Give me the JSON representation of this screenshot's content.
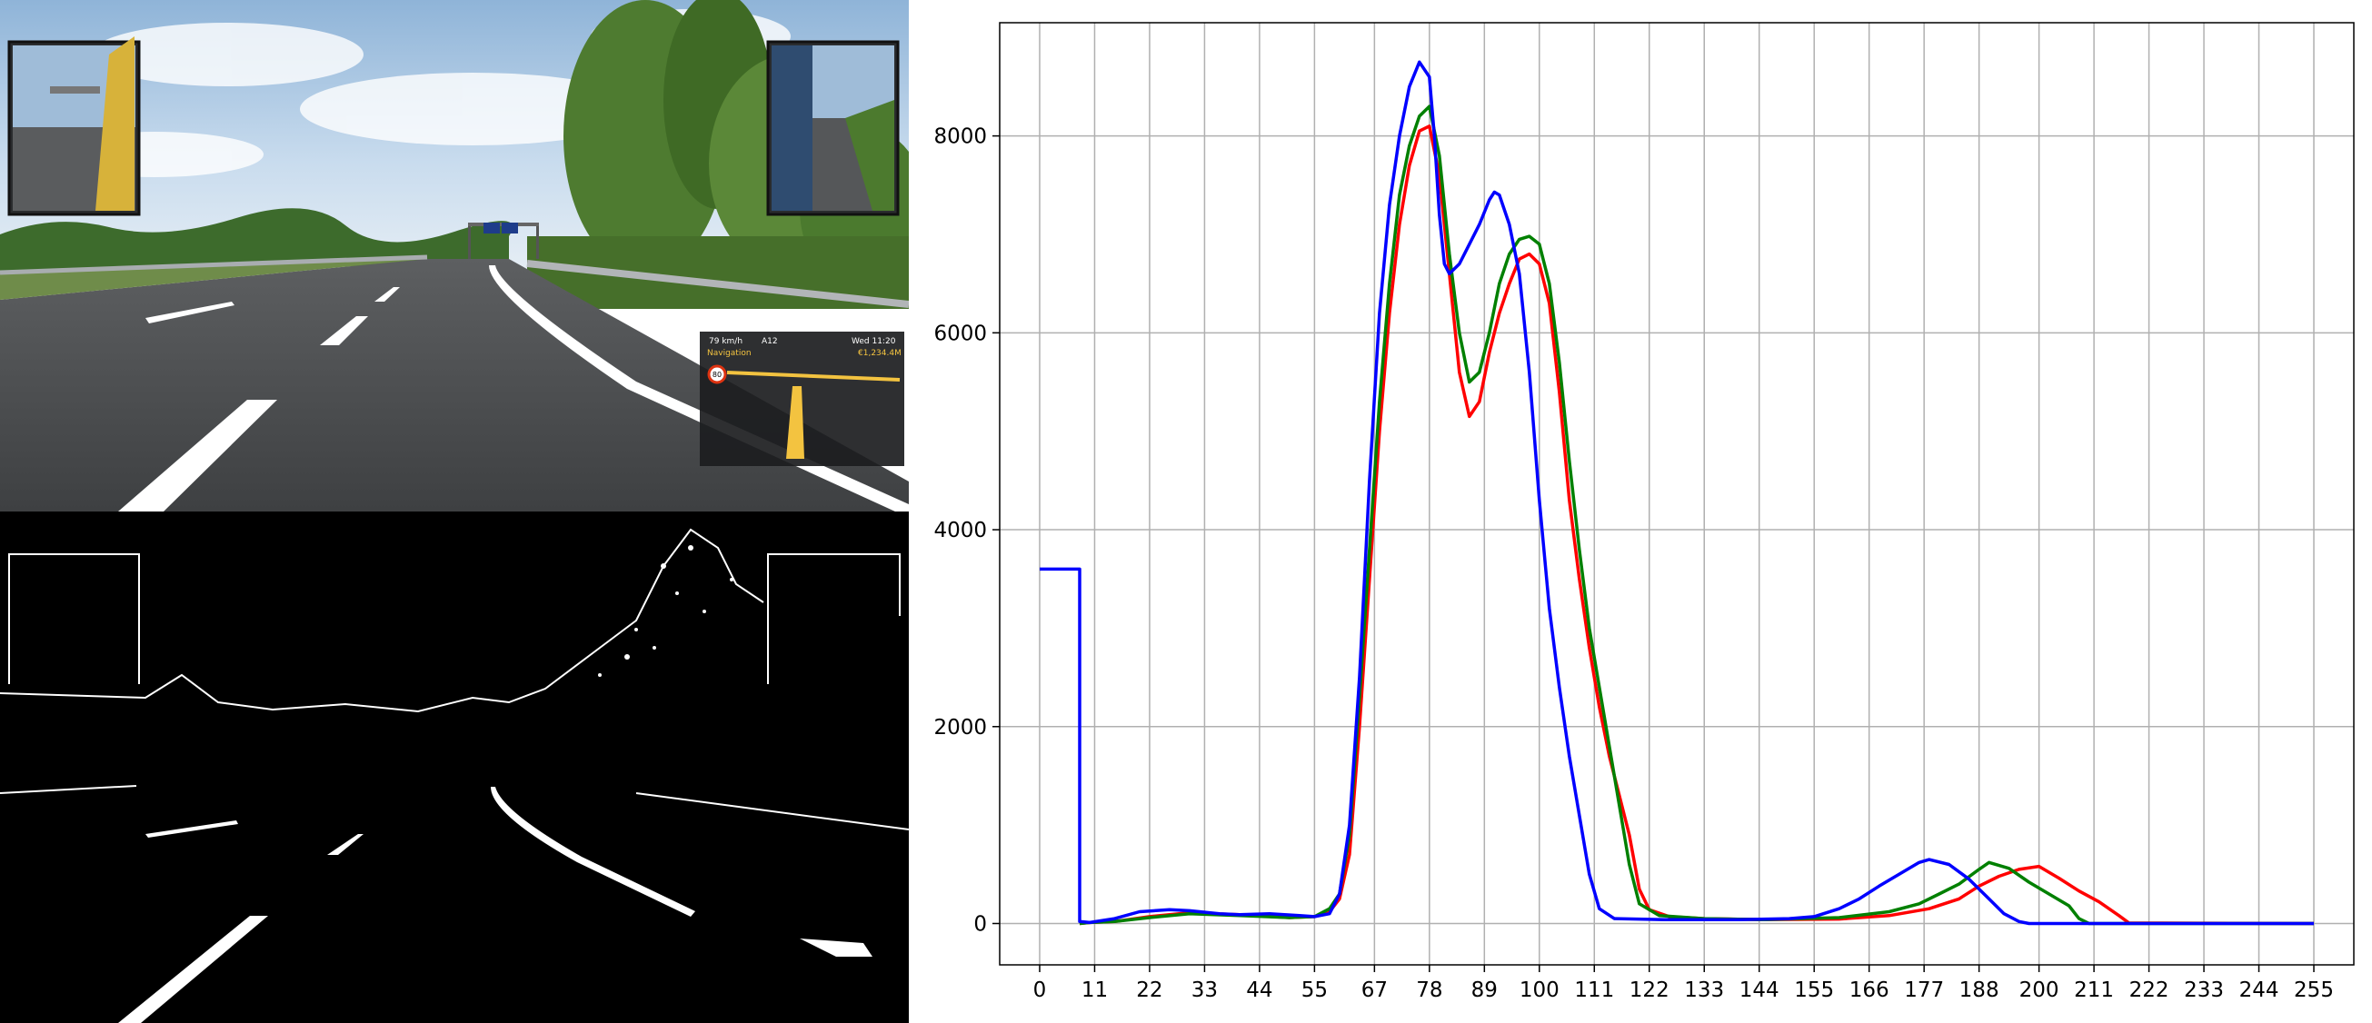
{
  "game_view": {
    "hud_speed": "79 km/h",
    "hud_route": "A12",
    "hud_time": "Wed 11:20",
    "hud_nav_label": "Navigation",
    "hud_money": "€1,234.4M",
    "speed_limit": "80"
  },
  "chart_data": {
    "type": "line",
    "title": "",
    "xlabel": "",
    "ylabel": "",
    "xlim": [
      -8,
      263
    ],
    "ylim": [
      -420,
      9150
    ],
    "grid": true,
    "legend": "none",
    "xticks": [
      0,
      11,
      22,
      33,
      44,
      55,
      67,
      78,
      89,
      100,
      111,
      122,
      133,
      144,
      155,
      166,
      177,
      188,
      200,
      211,
      222,
      233,
      244,
      255
    ],
    "yticks": [
      0,
      2000,
      4000,
      6000,
      8000
    ],
    "series": [
      {
        "color": "#ff0000",
        "points": [
          [
            8,
            0
          ],
          [
            10,
            10
          ],
          [
            15,
            20
          ],
          [
            22,
            70
          ],
          [
            30,
            110
          ],
          [
            40,
            90
          ],
          [
            50,
            60
          ],
          [
            55,
            70
          ],
          [
            58,
            120
          ],
          [
            60,
            250
          ],
          [
            62,
            700
          ],
          [
            64,
            2000
          ],
          [
            66,
            3500
          ],
          [
            68,
            5000
          ],
          [
            70,
            6200
          ],
          [
            72,
            7100
          ],
          [
            74,
            7700
          ],
          [
            76,
            8050
          ],
          [
            78,
            8100
          ],
          [
            80,
            7600
          ],
          [
            82,
            6600
          ],
          [
            84,
            5600
          ],
          [
            86,
            5150
          ],
          [
            88,
            5300
          ],
          [
            90,
            5800
          ],
          [
            92,
            6200
          ],
          [
            94,
            6500
          ],
          [
            96,
            6750
          ],
          [
            98,
            6800
          ],
          [
            100,
            6700
          ],
          [
            102,
            6300
          ],
          [
            104,
            5400
          ],
          [
            106,
            4300
          ],
          [
            108,
            3500
          ],
          [
            110,
            2800
          ],
          [
            112,
            2200
          ],
          [
            114,
            1700
          ],
          [
            116,
            1300
          ],
          [
            118,
            900
          ],
          [
            120,
            350
          ],
          [
            122,
            140
          ],
          [
            126,
            70
          ],
          [
            133,
            50
          ],
          [
            145,
            40
          ],
          [
            160,
            45
          ],
          [
            170,
            80
          ],
          [
            178,
            150
          ],
          [
            184,
            250
          ],
          [
            188,
            380
          ],
          [
            192,
            480
          ],
          [
            196,
            550
          ],
          [
            200,
            580
          ],
          [
            204,
            460
          ],
          [
            208,
            330
          ],
          [
            212,
            220
          ],
          [
            216,
            80
          ],
          [
            218,
            5
          ],
          [
            255,
            0
          ]
        ]
      },
      {
        "color": "#008000",
        "points": [
          [
            8,
            0
          ],
          [
            10,
            10
          ],
          [
            15,
            20
          ],
          [
            22,
            60
          ],
          [
            30,
            100
          ],
          [
            40,
            80
          ],
          [
            50,
            60
          ],
          [
            55,
            70
          ],
          [
            58,
            150
          ],
          [
            60,
            300
          ],
          [
            62,
            900
          ],
          [
            64,
            2300
          ],
          [
            66,
            3800
          ],
          [
            68,
            5300
          ],
          [
            70,
            6500
          ],
          [
            72,
            7400
          ],
          [
            74,
            7900
          ],
          [
            76,
            8200
          ],
          [
            78,
            8300
          ],
          [
            80,
            7800
          ],
          [
            82,
            6800
          ],
          [
            84,
            6000
          ],
          [
            86,
            5500
          ],
          [
            88,
            5600
          ],
          [
            90,
            6000
          ],
          [
            92,
            6500
          ],
          [
            94,
            6800
          ],
          [
            96,
            6950
          ],
          [
            98,
            6980
          ],
          [
            100,
            6900
          ],
          [
            102,
            6500
          ],
          [
            104,
            5700
          ],
          [
            106,
            4700
          ],
          [
            108,
            3800
          ],
          [
            110,
            3000
          ],
          [
            112,
            2400
          ],
          [
            114,
            1800
          ],
          [
            116,
            1200
          ],
          [
            118,
            600
          ],
          [
            120,
            200
          ],
          [
            124,
            80
          ],
          [
            133,
            50
          ],
          [
            145,
            40
          ],
          [
            160,
            60
          ],
          [
            170,
            120
          ],
          [
            176,
            200
          ],
          [
            180,
            300
          ],
          [
            184,
            400
          ],
          [
            188,
            550
          ],
          [
            190,
            620
          ],
          [
            194,
            560
          ],
          [
            198,
            420
          ],
          [
            202,
            300
          ],
          [
            206,
            180
          ],
          [
            208,
            50
          ],
          [
            210,
            0
          ],
          [
            255,
            0
          ]
        ]
      },
      {
        "color": "#0000ff",
        "points": [
          [
            0,
            3600
          ],
          [
            8,
            3600
          ],
          [
            8,
            20
          ],
          [
            10,
            10
          ],
          [
            15,
            50
          ],
          [
            20,
            120
          ],
          [
            26,
            140
          ],
          [
            30,
            130
          ],
          [
            36,
            100
          ],
          [
            40,
            90
          ],
          [
            46,
            100
          ],
          [
            52,
            80
          ],
          [
            55,
            70
          ],
          [
            58,
            100
          ],
          [
            60,
            300
          ],
          [
            62,
            1000
          ],
          [
            64,
            2500
          ],
          [
            66,
            4500
          ],
          [
            68,
            6200
          ],
          [
            70,
            7300
          ],
          [
            72,
            8000
          ],
          [
            74,
            8500
          ],
          [
            76,
            8750
          ],
          [
            78,
            8600
          ],
          [
            79,
            8000
          ],
          [
            80,
            7200
          ],
          [
            81,
            6700
          ],
          [
            82,
            6600
          ],
          [
            84,
            6700
          ],
          [
            86,
            6900
          ],
          [
            88,
            7100
          ],
          [
            90,
            7350
          ],
          [
            91,
            7430
          ],
          [
            92,
            7400
          ],
          [
            94,
            7100
          ],
          [
            96,
            6600
          ],
          [
            98,
            5600
          ],
          [
            100,
            4300
          ],
          [
            102,
            3200
          ],
          [
            104,
            2400
          ],
          [
            106,
            1700
          ],
          [
            108,
            1100
          ],
          [
            110,
            500
          ],
          [
            112,
            150
          ],
          [
            115,
            50
          ],
          [
            125,
            40
          ],
          [
            140,
            40
          ],
          [
            150,
            50
          ],
          [
            155,
            70
          ],
          [
            160,
            150
          ],
          [
            164,
            250
          ],
          [
            168,
            380
          ],
          [
            172,
            500
          ],
          [
            176,
            620
          ],
          [
            178,
            650
          ],
          [
            182,
            600
          ],
          [
            186,
            450
          ],
          [
            190,
            250
          ],
          [
            193,
            100
          ],
          [
            196,
            20
          ],
          [
            198,
            0
          ],
          [
            255,
            0
          ]
        ]
      }
    ]
  }
}
